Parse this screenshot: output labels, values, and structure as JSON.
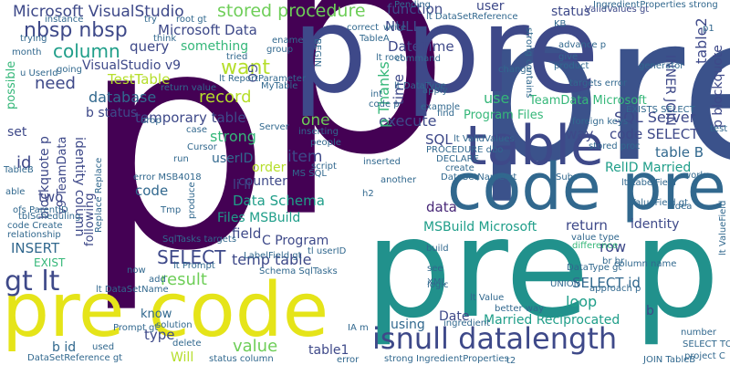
{
  "palette": {
    "dark_purple": "#440154",
    "purple": "#482878",
    "indigo": "#3e4989",
    "blue": "#31688e",
    "teal": "#26828e",
    "green_teal": "#1f9e89",
    "green": "#35b779",
    "light_green": "#6ece58",
    "lime": "#b5de2b",
    "yellow": "#fde725"
  },
  "words": [
    {
      "text": "p",
      "color": "#440154"
    },
    {
      "text": "p",
      "color": "#440154"
    },
    {
      "text": "pre",
      "color": "#3b528b"
    },
    {
      "text": "pre p",
      "color": "#21918c"
    },
    {
      "text": "p pre",
      "color": "#3e4989"
    },
    {
      "text": "code pre",
      "color": "#31688e"
    },
    {
      "text": "pre code",
      "color": "#e5e419"
    },
    {
      "text": "table",
      "color": "#3e4989"
    },
    {
      "text": "isnull datalength",
      "color": "#3e4989"
    },
    {
      "text": "gt lt",
      "color": "#3e4989"
    },
    {
      "text": "Microsoft VisualStudio",
      "color": "#3e4989"
    },
    {
      "text": "stored procedure",
      "color": "#6ece58"
    },
    {
      "text": "nbsp nbsp",
      "color": "#3e4989"
    },
    {
      "text": "Microsoft Data",
      "color": "#3e4989"
    },
    {
      "text": "column",
      "color": "#1f9e89"
    },
    {
      "text": "query",
      "color": "#3e4989"
    },
    {
      "text": "something",
      "color": "#35b779"
    },
    {
      "text": "VisualStudio v9",
      "color": "#3e4989"
    },
    {
      "text": "want",
      "color": "#b5de2b"
    },
    {
      "text": "TestTable",
      "color": "#b5de2b"
    },
    {
      "text": "need",
      "color": "#3e4989"
    },
    {
      "text": "database",
      "color": "#31688e"
    },
    {
      "text": "record",
      "color": "#b5de2b"
    },
    {
      "text": "b status",
      "color": "#3e4989"
    },
    {
      "text": "temporary table",
      "color": "#3e4989"
    },
    {
      "text": "strong",
      "color": "#35b779"
    },
    {
      "text": "SELECT",
      "color": "#3e4989"
    },
    {
      "text": "result",
      "color": "#6ece58"
    },
    {
      "text": "temp table",
      "color": "#3e4989"
    },
    {
      "text": "INSERT",
      "color": "#31688e"
    },
    {
      "text": "value",
      "color": "#6ece58"
    },
    {
      "text": "table1",
      "color": "#3e4989"
    },
    {
      "text": "Will",
      "color": "#b5de2b"
    },
    {
      "text": "type",
      "color": "#3e4989"
    },
    {
      "text": "know",
      "color": "#31688e"
    },
    {
      "text": "b id",
      "color": "#31688e"
    },
    {
      "text": "EXIST",
      "color": "#35b779"
    },
    {
      "text": "Data Schema",
      "color": "#1f9e89"
    },
    {
      "text": "Files MSBuild",
      "color": "#1f9e89"
    },
    {
      "text": "field",
      "color": "#3e4989"
    },
    {
      "text": "C Program",
      "color": "#3e4989"
    },
    {
      "text": "counter",
      "color": "#3e4989"
    },
    {
      "text": "order",
      "color": "#b5de2b"
    },
    {
      "text": "li li",
      "color": "#3e4989"
    },
    {
      "text": "userID",
      "color": "#31688e"
    },
    {
      "text": "item",
      "color": "#3e4989"
    },
    {
      "text": "one",
      "color": "#6ece58"
    },
    {
      "text": "execute",
      "color": "#3e4989"
    },
    {
      "text": "function",
      "color": "#3e4989"
    },
    {
      "text": "user",
      "color": "#3e4989"
    },
    {
      "text": "NULL",
      "color": "#3e4989"
    },
    {
      "text": "DateTime",
      "color": "#3e4989"
    },
    {
      "text": "use",
      "color": "#35b779"
    },
    {
      "text": "Program Files",
      "color": "#35b779"
    },
    {
      "text": "TeamData Microsoft",
      "color": "#35b779"
    },
    {
      "text": "SQL Server",
      "color": "#3e4989"
    },
    {
      "text": "code SELECT",
      "color": "#3e4989"
    },
    {
      "text": "table B",
      "color": "#31688e"
    },
    {
      "text": "RelID Married",
      "color": "#1f9e89"
    },
    {
      "text": "data",
      "color": "#482878"
    },
    {
      "text": "way",
      "color": "#3e4989"
    },
    {
      "text": "return",
      "color": "#3e4989"
    },
    {
      "text": "row",
      "color": "#3e4989"
    },
    {
      "text": "identity",
      "color": "#3e4989"
    },
    {
      "text": "MSBuild Microsoft",
      "color": "#1f9e89"
    },
    {
      "text": "SELECT id",
      "color": "#31688e"
    },
    {
      "text": "loop",
      "color": "#1f9e89"
    },
    {
      "text": "Date",
      "color": "#3e4989"
    },
    {
      "text": "using",
      "color": "#31688e"
    },
    {
      "text": "Married Reciprocated",
      "color": "#1f9e89"
    },
    {
      "text": "b",
      "color": "#3e4989"
    },
    {
      "text": "status",
      "color": "#3e4989"
    },
    {
      "text": "INNER JOIN",
      "color": "#3e4989"
    },
    {
      "text": "table2",
      "color": "#3e4989"
    },
    {
      "text": "p blockquote",
      "color": "#3e4989"
    },
    {
      "text": "id",
      "color": "#3e4989"
    },
    {
      "text": "set",
      "color": "#3e4989"
    },
    {
      "text": "possible",
      "color": "#35b779"
    },
    {
      "text": "two",
      "color": "#3e4989"
    },
    {
      "text": "identity column",
      "color": "#3e4989"
    },
    {
      "text": "blockquote p",
      "color": "#3e4989"
    },
    {
      "text": "v9 TeamData",
      "color": "#3e4989"
    },
    {
      "text": "following",
      "color": "#3e4989"
    },
    {
      "text": "code",
      "color": "#31688e"
    },
    {
      "text": "GO",
      "color": "#3e4989"
    },
    {
      "text": "p Thanks",
      "color": "#35b779"
    },
    {
      "text": "time",
      "color": "#3e4989"
    },
    {
      "text": "SQL",
      "color": "#3e4989"
    },
    {
      "text": "lt ValidValues",
      "color": "#31688e"
    },
    {
      "text": "DataSetName gt",
      "color": "#31688e"
    },
    {
      "text": "lt DataSetReference",
      "color": "#31688e"
    },
    {
      "text": "ValidValues gt",
      "color": "#3e4989"
    },
    {
      "text": "lt ReportParameter",
      "color": "#31688e"
    },
    {
      "text": "SqlTasks targets",
      "color": "#31688e"
    },
    {
      "text": "lt DataSetName",
      "color": "#31688e"
    },
    {
      "text": "Schema SqlTasks",
      "color": "#31688e"
    },
    {
      "text": "lt Prompt",
      "color": "#31688e"
    },
    {
      "text": "Prompt gt",
      "color": "#31688e"
    },
    {
      "text": "DataSetReference gt",
      "color": "#31688e"
    },
    {
      "text": "status column",
      "color": "#31688e"
    },
    {
      "text": "LabelField gt",
      "color": "#31688e"
    },
    {
      "text": "lt LabelField",
      "color": "#31688e"
    },
    {
      "text": "ValueField gt",
      "color": "#31688e"
    },
    {
      "text": "lt ValueField",
      "color": "#31688e"
    },
    {
      "text": "DataType gt",
      "color": "#31688e"
    },
    {
      "text": "lt DataType",
      "color": "#31688e"
    },
    {
      "text": "lt Value",
      "color": "#31688e"
    },
    {
      "text": "value type",
      "color": "#31688e"
    },
    {
      "text": "br br",
      "color": "#31688e"
    },
    {
      "text": "difference",
      "color": "#35b779"
    },
    {
      "text": "better way",
      "color": "#31688e"
    },
    {
      "text": "number",
      "color": "#31688e"
    },
    {
      "text": "JOIN TableB",
      "color": "#31688e"
    },
    {
      "text": "delete",
      "color": "#31688e"
    },
    {
      "text": "used",
      "color": "#31688e"
    },
    {
      "text": "error",
      "color": "#31688e"
    },
    {
      "text": "example",
      "color": "#31688e"
    },
    {
      "text": "code p",
      "color": "#31688e"
    },
    {
      "text": "int",
      "color": "#31688e"
    },
    {
      "text": "lt root",
      "color": "#31688e"
    },
    {
      "text": "TableA",
      "color": "#31688e"
    },
    {
      "text": "command",
      "color": "#31688e"
    },
    {
      "text": "apply",
      "color": "#31688e"
    },
    {
      "text": "product",
      "color": "#31688e"
    },
    {
      "text": "change",
      "color": "#31688e"
    },
    {
      "text": "advance p",
      "color": "#31688e"
    },
    {
      "text": "targets error",
      "color": "#31688e"
    },
    {
      "text": "foreign keys",
      "color": "#31688e"
    },
    {
      "text": "strong contains",
      "color": "#31688e"
    },
    {
      "text": "instance",
      "color": "#31688e"
    },
    {
      "text": "trying",
      "color": "#31688e"
    },
    {
      "text": "tried",
      "color": "#31688e"
    },
    {
      "text": "think",
      "color": "#31688e"
    },
    {
      "text": "root gt",
      "color": "#31688e"
    },
    {
      "text": "return value",
      "color": "#31688e"
    },
    {
      "text": "MyTable",
      "color": "#31688e"
    },
    {
      "text": "correct",
      "color": "#31688e"
    },
    {
      "text": "write",
      "color": "#31688e"
    },
    {
      "text": "drop",
      "color": "#31688e"
    },
    {
      "text": "case",
      "color": "#31688e"
    },
    {
      "text": "Server",
      "color": "#31688e"
    },
    {
      "text": "people",
      "color": "#31688e"
    },
    {
      "text": "inserted",
      "color": "#31688e"
    },
    {
      "text": "another",
      "color": "#31688e"
    },
    {
      "text": "h2",
      "color": "#31688e"
    },
    {
      "text": "MS SQL",
      "color": "#31688e"
    },
    {
      "text": "script",
      "color": "#31688e"
    },
    {
      "text": "PROCEDURE dbo",
      "color": "#31688e"
    },
    {
      "text": "DECLARE",
      "color": "#31688e"
    },
    {
      "text": "create",
      "color": "#31688e"
    },
    {
      "text": "error MSB4018",
      "color": "#31688e"
    },
    {
      "text": "TableB",
      "color": "#31688e"
    },
    {
      "text": "able",
      "color": "#31688e"
    },
    {
      "text": "code Create",
      "color": "#31688e"
    },
    {
      "text": "relationship",
      "color": "#31688e"
    },
    {
      "text": "tblScheduling",
      "color": "#31688e"
    },
    {
      "text": "ofs ParentID",
      "color": "#31688e"
    },
    {
      "text": "Replace Replace",
      "color": "#31688e"
    },
    {
      "text": "now",
      "color": "#31688e"
    },
    {
      "text": "add",
      "color": "#31688e"
    },
    {
      "text": "tl userID",
      "color": "#31688e"
    },
    {
      "text": "build",
      "color": "#31688e"
    },
    {
      "text": "logic",
      "color": "#31688e"
    },
    {
      "text": "UNION",
      "color": "#31688e"
    },
    {
      "text": "column name",
      "color": "#31688e"
    },
    {
      "text": "approach p",
      "color": "#31688e"
    },
    {
      "text": "work",
      "color": "#31688e"
    },
    {
      "text": "idea",
      "color": "#31688e"
    },
    {
      "text": "solution",
      "color": "#31688e"
    },
    {
      "text": "ingredient",
      "color": "#31688e"
    },
    {
      "text": "strong IngredientProperties",
      "color": "#31688e"
    },
    {
      "text": "SELECT TOP",
      "color": "#31688e"
    },
    {
      "text": "project C",
      "color": "#31688e"
    },
    {
      "text": "t2",
      "color": "#31688e"
    },
    {
      "text": "IA m",
      "color": "#31688e"
    },
    {
      "text": "u UserId",
      "color": "#31688e"
    },
    {
      "text": "month",
      "color": "#31688e"
    },
    {
      "text": "going",
      "color": "#31688e"
    },
    {
      "text": "try",
      "color": "#31688e"
    },
    {
      "text": "ename",
      "color": "#31688e"
    },
    {
      "text": "group",
      "color": "#31688e"
    },
    {
      "text": "BEGIN",
      "color": "#31688e"
    },
    {
      "text": "Pending",
      "color": "#31688e"
    },
    {
      "text": "KB",
      "color": "#31688e"
    },
    {
      "text": "IngredientProperties strong",
      "color": "#31688e"
    },
    {
      "text": "give",
      "color": "#31688e"
    },
    {
      "text": "generator",
      "color": "#31688e"
    },
    {
      "text": "EXISTS SELECT",
      "color": "#31688e"
    },
    {
      "text": "stored proc",
      "color": "#31688e"
    },
    {
      "text": "find",
      "color": "#31688e"
    },
    {
      "text": "test",
      "color": "#31688e"
    },
    {
      "text": "p1",
      "color": "#31688e"
    },
    {
      "text": "see",
      "color": "#31688e"
    },
    {
      "text": "XML",
      "color": "#31688e"
    },
    {
      "text": "Subs",
      "color": "#31688e"
    },
    {
      "text": "Tmp",
      "color": "#31688e"
    },
    {
      "text": "run",
      "color": "#31688e"
    },
    {
      "text": "produce",
      "color": "#31688e"
    },
    {
      "text": "inserting",
      "color": "#31688e"
    },
    {
      "text": "Cursor",
      "color": "#31688e"
    }
  ]
}
